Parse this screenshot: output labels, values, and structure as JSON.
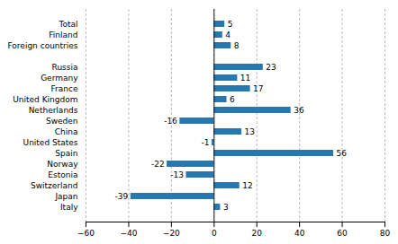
{
  "chart_data": {
    "type": "bar",
    "orientation": "horizontal",
    "categories": [
      "Italy",
      "Japan",
      "Switzerland",
      "Estonia",
      "Norway",
      "Spain",
      "United States",
      "China",
      "Sweden",
      "Netherlands",
      "United Kingdom",
      "France",
      "Germany",
      "Russia",
      null,
      "Foreign countries",
      "Finland",
      "Total"
    ],
    "values": [
      3,
      -39,
      12,
      -13,
      -22,
      56,
      -1,
      13,
      -16,
      36,
      6,
      17,
      11,
      23,
      null,
      8,
      4,
      5
    ],
    "color": "#2878b0",
    "xlim": [
      -60,
      80
    ],
    "xticks": [
      -60,
      -40,
      -20,
      0,
      20,
      40,
      60,
      80
    ],
    "grid": true,
    "data_labels": true
  }
}
